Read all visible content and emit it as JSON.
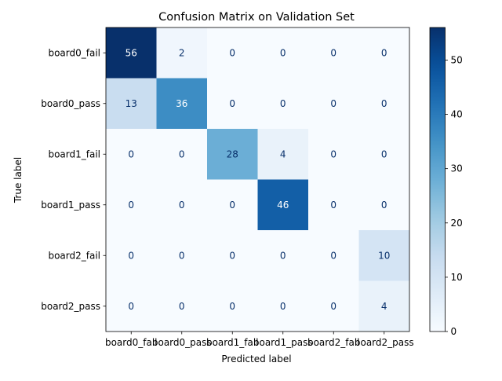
{
  "chart_data": {
    "type": "heatmap",
    "title": "Confusion Matrix on Validation Set",
    "xlabel": "Predicted label",
    "ylabel": "True label",
    "x_categories": [
      "board0_fail",
      "board0_pass",
      "board1_fail",
      "board1_pass",
      "board2_fail",
      "board2_pass"
    ],
    "y_categories": [
      "board0_fail",
      "board0_pass",
      "board1_fail",
      "board1_pass",
      "board2_fail",
      "board2_pass"
    ],
    "values": [
      [
        56,
        2,
        0,
        0,
        0,
        0
      ],
      [
        13,
        36,
        0,
        0,
        0,
        0
      ],
      [
        0,
        0,
        28,
        4,
        0,
        0
      ],
      [
        0,
        0,
        0,
        46,
        0,
        0
      ],
      [
        0,
        0,
        0,
        0,
        0,
        10
      ],
      [
        0,
        0,
        0,
        0,
        0,
        4
      ]
    ],
    "colormap": "Blues",
    "vmin": 0,
    "vmax": 56,
    "colorbar_ticks": [
      0,
      10,
      20,
      30,
      40,
      50
    ],
    "text_color_light": "#ffffff",
    "text_color_dark": "#08306b"
  }
}
